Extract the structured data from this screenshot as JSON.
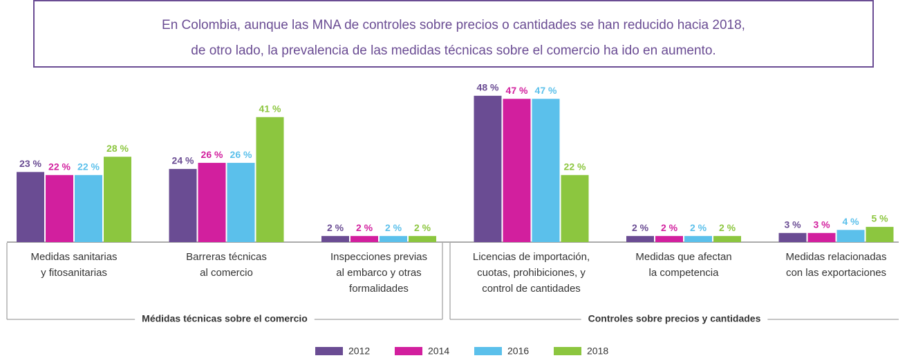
{
  "chart_data": {
    "type": "bar",
    "title": [
      "En Colombia, aunque las MNA de controles sobre precios o cantidades se han reducido hacia 2018,",
      "de otro lado, la prevalencia de las medidas técnicas sobre el comercio ha ido en aumento."
    ],
    "groups": [
      {
        "name": "Médidas técnicas sobre el comercio",
        "categories": [
          [
            "Medidas sanitarias",
            "y fitosanitarias"
          ],
          [
            "Barreras técnicas",
            "al comercio"
          ],
          [
            "Inspecciones previas",
            "al embarco y otras",
            "formalidades"
          ]
        ]
      },
      {
        "name": "Controles sobre precios y cantidades",
        "categories": [
          [
            "Licencias de importación,",
            "cuotas, prohibiciones, y",
            "control de cantidades"
          ],
          [
            "Medidas que afectan",
            "la competencia"
          ],
          [
            "Medidas relacionadas",
            "con las exportaciones"
          ]
        ]
      }
    ],
    "series": [
      {
        "name": "2012",
        "color": "#6a4c93",
        "values": [
          23,
          24,
          2,
          48,
          2,
          3
        ],
        "value_labels": [
          "23 %",
          "24 %",
          "2 %",
          "48 %",
          "2 %",
          "3 %"
        ]
      },
      {
        "name": "2014",
        "color": "#d21f9e",
        "values": [
          22,
          26,
          2,
          47,
          2,
          3
        ],
        "value_labels": [
          "22 %",
          "26 %",
          "2 %",
          "47 %",
          "2 %",
          "3 %"
        ]
      },
      {
        "name": "2016",
        "color": "#5bc0eb",
        "values": [
          22,
          26,
          2,
          47,
          2,
          4
        ],
        "value_labels": [
          "22 %",
          "26 %",
          "2 %",
          "47 %",
          "2 %",
          "4 %"
        ]
      },
      {
        "name": "2018",
        "color": "#8cc63f",
        "values": [
          28,
          41,
          2,
          22,
          2,
          5
        ],
        "value_labels": [
          "28 %",
          "41 %",
          "2 %",
          "22 %",
          "2 %",
          "5 %"
        ]
      }
    ]
  }
}
